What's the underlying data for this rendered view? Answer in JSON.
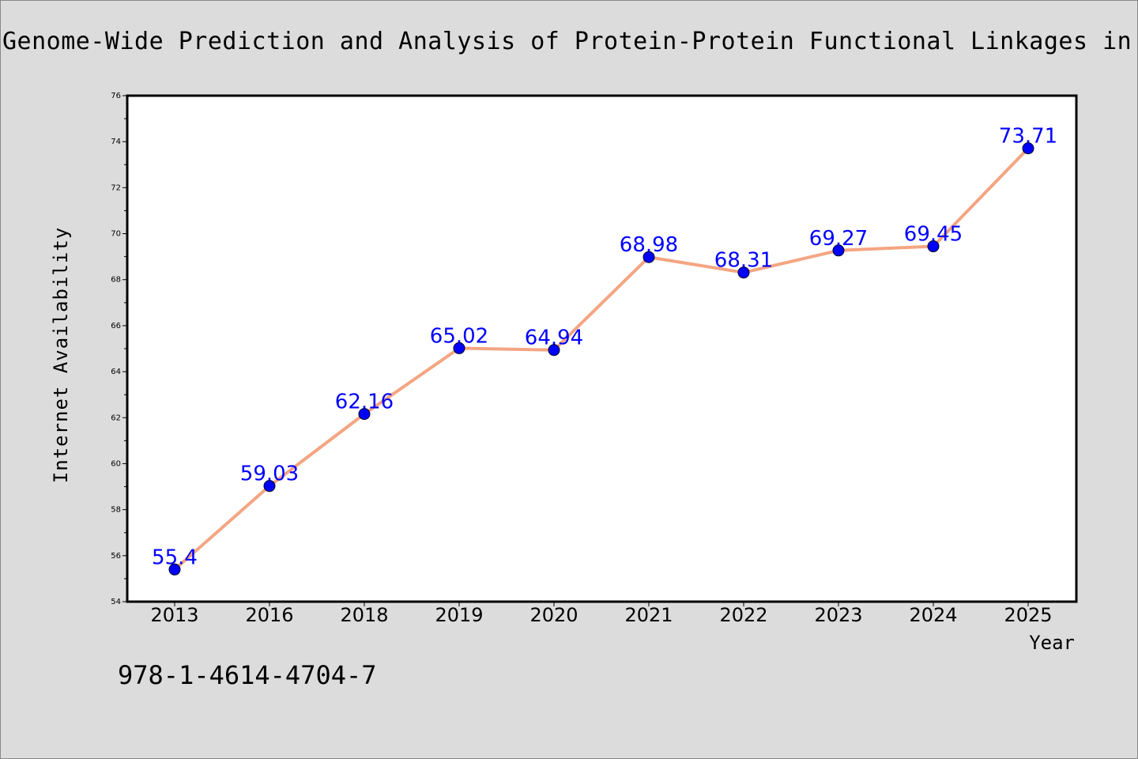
{
  "chart_data": {
    "type": "line",
    "title": "Genome-Wide Prediction and Analysis of Protein-Protein Functional Linkages in Ba",
    "xlabel": "Year",
    "ylabel": "Internet Availability",
    "categories": [
      "2013",
      "2016",
      "2018",
      "2019",
      "2020",
      "2021",
      "2022",
      "2023",
      "2024",
      "2025"
    ],
    "values": [
      55.4,
      59.03,
      62.16,
      65.02,
      64.94,
      68.98,
      68.31,
      69.27,
      69.45,
      73.71
    ],
    "data_labels": [
      "55.4",
      "59.03",
      "62.16",
      "65.02",
      "64.94",
      "68.98",
      "68.31",
      "69.27",
      "69.45",
      "73.71"
    ],
    "ylim": [
      54,
      76
    ],
    "yticks": [
      "54",
      "56",
      "58",
      "60",
      "62",
      "64",
      "66",
      "68",
      "70",
      "72",
      "74",
      "76"
    ],
    "grid": false,
    "line_color": "#f4a582",
    "marker_color": "#0000ff",
    "label_color": "#0000ff"
  },
  "footer": {
    "identifier": "978-1-4614-4704-7"
  }
}
